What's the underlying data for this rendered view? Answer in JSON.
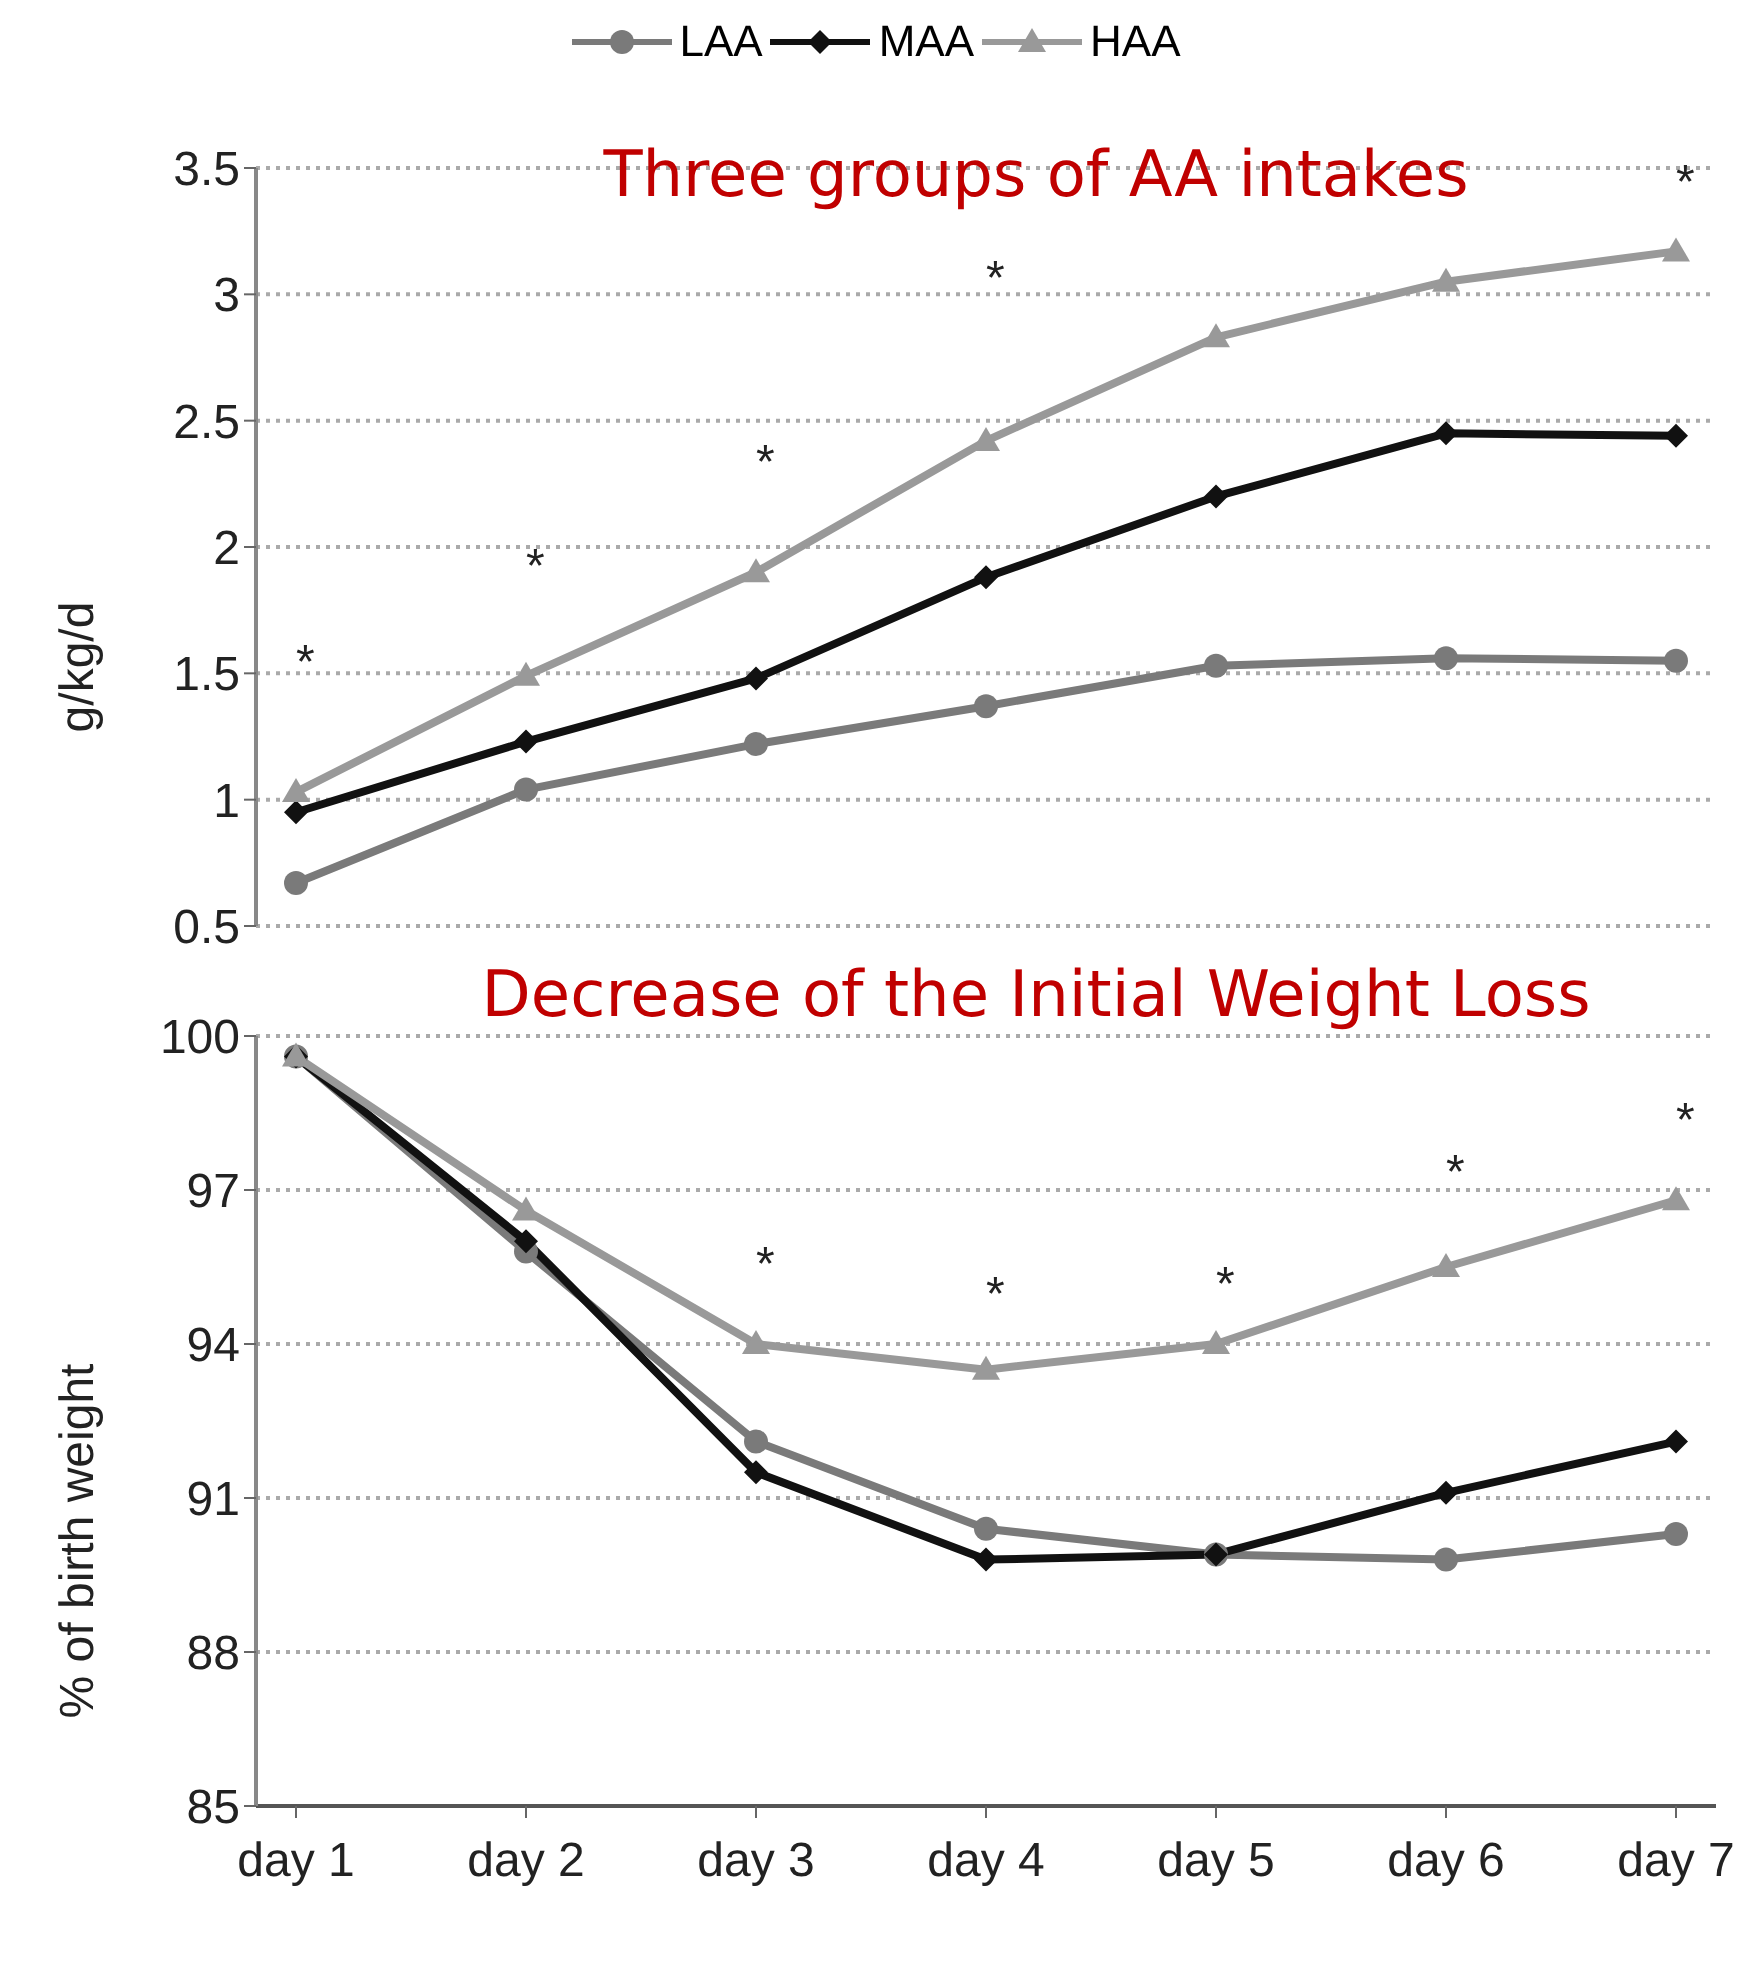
{
  "chart_data": [
    {
      "type": "line",
      "title": "Three groups of AA intakes",
      "ylabel": "g/kg/d",
      "categories": [
        null,
        null,
        null,
        null,
        null,
        null,
        null
      ],
      "tick_labels": "y",
      "series": [
        {
          "name": "LAA",
          "color": "#7a7a7a",
          "marker": "circle",
          "values": [
            0.67,
            1.04,
            1.22,
            1.37,
            1.53,
            1.56,
            1.55
          ]
        },
        {
          "name": "MAA",
          "color": "#111111",
          "marker": "diamond",
          "values": [
            0.95,
            1.23,
            1.48,
            1.88,
            2.2,
            2.45,
            2.44
          ]
        },
        {
          "name": "HAA",
          "color": "#999999",
          "marker": "triangle",
          "values": [
            1.03,
            1.49,
            1.9,
            2.42,
            2.83,
            3.05,
            3.17
          ]
        }
      ],
      "ylim": [
        0.5,
        3.5
      ],
      "yticks": [
        0.5,
        1,
        1.5,
        2,
        2.5,
        3,
        3.5
      ],
      "grid": "y",
      "legend": "top",
      "annotations": [
        "*",
        "*",
        "*",
        "*",
        "*"
      ]
    },
    {
      "type": "line",
      "title": "Decrease of the Initial Weight Loss",
      "ylabel": "% of birth weight",
      "categories": [
        "day 1",
        "day 2",
        "day 3",
        "day 4",
        "day 5",
        "day 6",
        "day 7"
      ],
      "series": [
        {
          "color": "#7a7a7a",
          "marker": "circle",
          "values": [
            99.6,
            95.8,
            92.1,
            90.4,
            89.9,
            89.8,
            90.3
          ]
        },
        {
          "color": "#111111",
          "marker": "diamond",
          "values": [
            99.6,
            96.0,
            91.5,
            89.8,
            89.9,
            91.1,
            92.1
          ]
        },
        {
          "color": "#999999",
          "marker": "triangle",
          "values": [
            99.6,
            96.6,
            94.0,
            93.5,
            94.0,
            95.5,
            96.8
          ]
        }
      ],
      "ylim": [
        85,
        100
      ],
      "yticks": [
        85,
        88,
        91,
        94,
        97,
        100
      ],
      "grid": "y",
      "legend": false,
      "annotations": [
        "*",
        "*",
        "*",
        "*",
        "*"
      ]
    }
  ]
}
